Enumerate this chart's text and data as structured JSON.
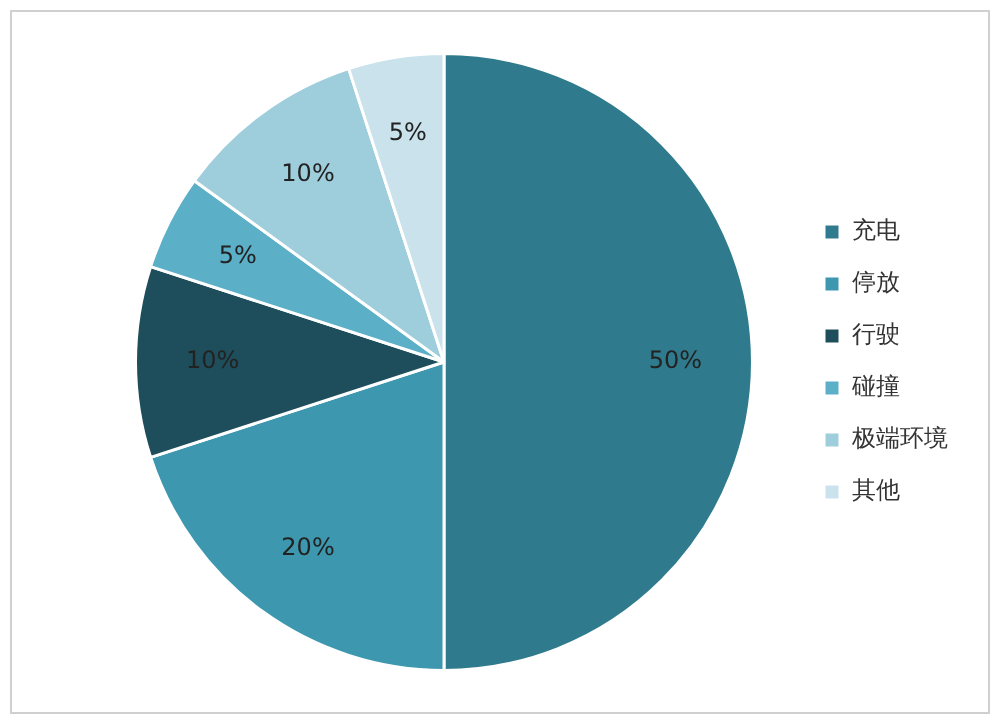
{
  "chart_data": {
    "type": "pie",
    "categories": [
      "充电",
      "停放",
      "行驶",
      "碰撞",
      "极端环境",
      "其他"
    ],
    "values": [
      50,
      20,
      10,
      5,
      10,
      5
    ],
    "colors": [
      "#2f7b8d",
      "#3d97af",
      "#1e4e5b",
      "#5bafc7",
      "#9ecddc",
      "#c9e2eb"
    ],
    "value_labels": [
      "50%",
      "20%",
      "10%",
      "5%",
      "10%",
      "5%"
    ],
    "legend": "right"
  }
}
